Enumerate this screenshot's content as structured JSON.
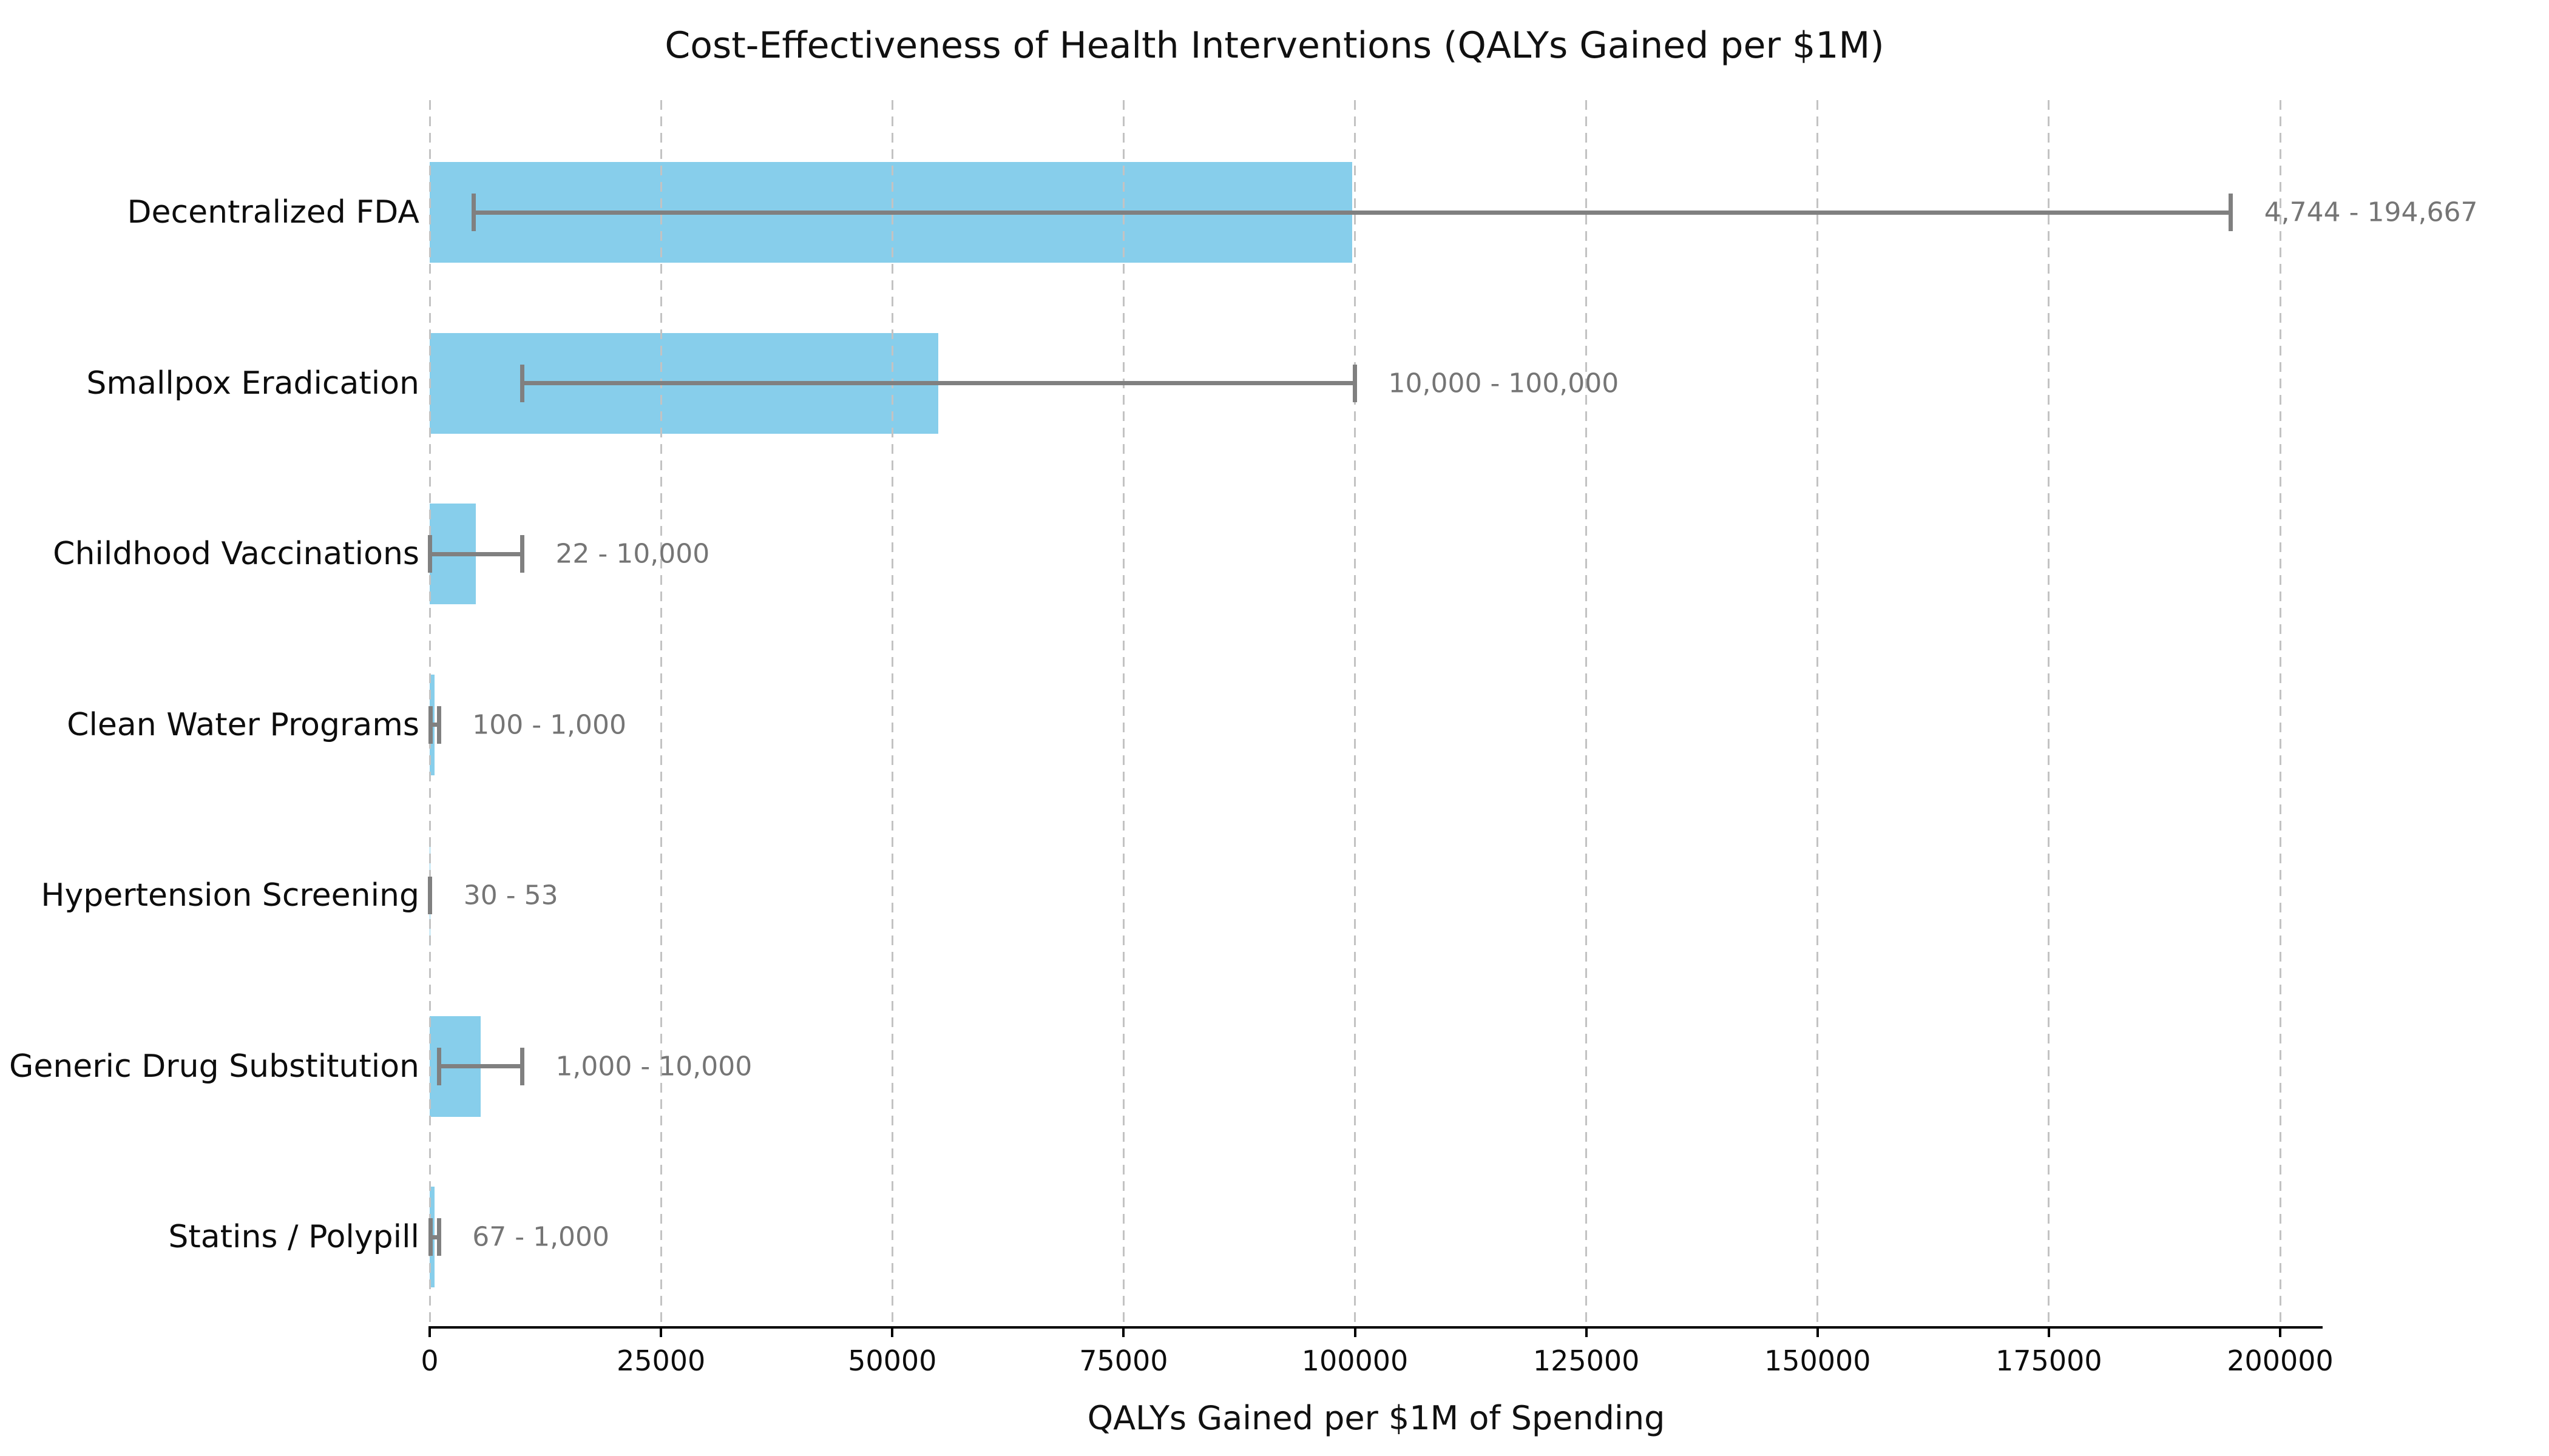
{
  "chart_data": {
    "type": "bar",
    "orientation": "horizontal",
    "title": "Cost-Effectiveness of Health Interventions (QALYs Gained per $1M)",
    "xlabel": "QALYs Gained per $1M of Spending",
    "ylabel": "",
    "xlim": [
      0,
      204600
    ],
    "x_ticks": [
      0,
      25000,
      50000,
      75000,
      100000,
      125000,
      150000,
      175000,
      200000
    ],
    "grid": "vertical dashed gridlines at every x tick",
    "legend": "none",
    "bar_color": "#87CEEB",
    "error_bar_color": "#808080",
    "bar_value_meaning": "midpoint of the low-high QALY range; error bars span low to high",
    "categories": [
      "Decentralized FDA",
      "Smallpox Eradication",
      "Childhood Vaccinations",
      "Clean Water Programs",
      "Hypertension Screening",
      "Generic Drug Substitution",
      "Statins / Polypill"
    ],
    "rows": [
      {
        "label": "Decentralized FDA",
        "low": 4744,
        "high": 194667,
        "mid": 99705.5,
        "range_label": "4,744 - 194,667"
      },
      {
        "label": "Smallpox Eradication",
        "low": 10000,
        "high": 100000,
        "mid": 55000,
        "range_label": "10,000 - 100,000"
      },
      {
        "label": "Childhood Vaccinations",
        "low": 22,
        "high": 10000,
        "mid": 5011,
        "range_label": "22 - 10,000"
      },
      {
        "label": "Clean Water Programs",
        "low": 100,
        "high": 1000,
        "mid": 550,
        "range_label": "100 - 1,000"
      },
      {
        "label": "Hypertension Screening",
        "low": 30,
        "high": 53,
        "mid": 41.5,
        "range_label": "30 - 53"
      },
      {
        "label": "Generic Drug Substitution",
        "low": 1000,
        "high": 10000,
        "mid": 5500,
        "range_label": "1,000 - 10,000"
      },
      {
        "label": "Statins / Polypill",
        "low": 67,
        "high": 1000,
        "mid": 533.5,
        "range_label": "67 - 1,000"
      }
    ]
  }
}
